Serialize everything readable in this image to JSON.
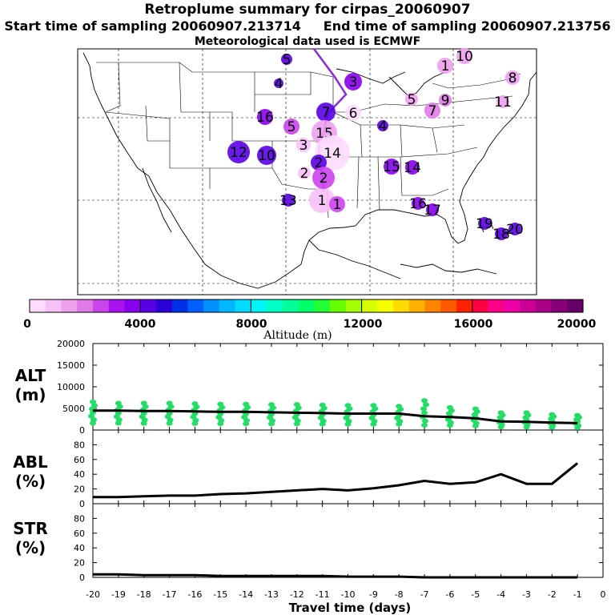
{
  "header": {
    "title": "Retroplume summary for cirpas_20060907",
    "start_label": "Start time of sampling 20060907.213714",
    "end_label": "End time of sampling 20060907.213756",
    "met_label": "Meteorological data used is ECMWF"
  },
  "colors": {
    "line": "#000000",
    "scatter": "#22dd66",
    "trajectory": "#8a2be2",
    "colorbar": [
      "#ffdcff",
      "#f7c0f7",
      "#eea0ee",
      "#e07ae6",
      "#cc44ee",
      "#aa11ee",
      "#8800ee",
      "#5a00e6",
      "#2a00d8",
      "#0030e8",
      "#0060ff",
      "#0090ff",
      "#00b8ff",
      "#00dcff",
      "#00f6f6",
      "#00ffc4",
      "#00ff9a",
      "#00ff66",
      "#22ff33",
      "#66ff00",
      "#a4ff00",
      "#d6ff00",
      "#f6ff00",
      "#ffdc00",
      "#ffb000",
      "#ff8400",
      "#ff5a00",
      "#ff2200",
      "#ff0044",
      "#ff0088",
      "#ee00a6",
      "#cc0099",
      "#aa0088",
      "#880077",
      "#660066"
    ]
  },
  "chart_data": [
    {
      "type": "map",
      "title": "Retroplume summary for cirpas_20060907",
      "colorbar": {
        "label": "Altitude (m)",
        "ticks": [
          "0",
          "4000",
          "8000",
          "12000",
          "16000",
          "20000"
        ],
        "range": [
          0,
          20000
        ]
      },
      "markers": [
        {
          "label": "5",
          "day": 5,
          "alt": 4500
        },
        {
          "label": "10",
          "day": 10,
          "alt": 1200
        },
        {
          "label": "4",
          "day": 4,
          "alt": 4000
        },
        {
          "label": "8",
          "day": 8,
          "alt": 1500
        },
        {
          "label": "1",
          "day": 1,
          "alt": 1500
        },
        {
          "label": "11",
          "day": 11,
          "alt": 1300
        },
        {
          "label": "7",
          "day": 7,
          "alt": 4000
        },
        {
          "label": "6",
          "day": 6,
          "alt": 500
        },
        {
          "label": "5",
          "day": 5,
          "alt": 1200
        },
        {
          "label": "9",
          "day": 9,
          "alt": 2000
        },
        {
          "label": "7",
          "day": 7,
          "alt": 1800
        },
        {
          "label": "3",
          "day": 3,
          "alt": 3500
        },
        {
          "label": "4",
          "day": 4,
          "alt": 4000
        },
        {
          "label": "16",
          "day": 16,
          "alt": 3500
        },
        {
          "label": "5",
          "day": 5,
          "alt": 2500
        },
        {
          "label": "15",
          "day": 15,
          "alt": 1500
        },
        {
          "label": "3",
          "day": 3,
          "alt": 800
        },
        {
          "label": "14",
          "day": 14,
          "alt": 400
        },
        {
          "label": "12",
          "day": 12,
          "alt": 4500
        },
        {
          "label": "10",
          "day": 10,
          "alt": 4000
        },
        {
          "label": "2",
          "day": 2,
          "alt": 600
        },
        {
          "label": "2",
          "day": 2,
          "alt": 4000
        },
        {
          "label": "15",
          "day": 15,
          "alt": 3500
        },
        {
          "label": "14",
          "day": 14,
          "alt": 3500
        },
        {
          "label": "13",
          "day": 13,
          "alt": 4500
        },
        {
          "label": "1",
          "day": 1,
          "alt": 600
        },
        {
          "label": "1",
          "day": 1,
          "alt": 2500
        },
        {
          "label": "16",
          "day": 16,
          "alt": 3500
        },
        {
          "label": "17",
          "day": 17,
          "alt": 3500
        },
        {
          "label": "19",
          "day": 19,
          "alt": 4500
        },
        {
          "label": "18",
          "day": 18,
          "alt": 4500
        },
        {
          "label": "20",
          "day": 20,
          "alt": 4500
        },
        {
          "label": "2",
          "day": 2,
          "alt": 2500
        }
      ]
    },
    {
      "type": "line",
      "name": "ALT",
      "ylabel": "ALT (m)",
      "x": [
        -20,
        -19,
        -18,
        -17,
        -16,
        -15,
        -14,
        -13,
        -12,
        -11,
        -10,
        -9,
        -8,
        -7,
        -6,
        -5,
        -4,
        -3,
        -2,
        -1
      ],
      "values": [
        4500,
        4500,
        4400,
        4400,
        4300,
        4200,
        4200,
        4100,
        4000,
        3900,
        3800,
        3800,
        3800,
        3200,
        3000,
        2700,
        2000,
        1900,
        1700,
        1600
      ],
      "scatter_tops": [
        6500,
        6200,
        6200,
        6200,
        6100,
        6000,
        6000,
        5900,
        5900,
        5800,
        5700,
        5700,
        5500,
        6800,
        5200,
        4900,
        4000,
        4000,
        3600,
        3400
      ],
      "yticks": [
        "0",
        "5000",
        "10000",
        "15000",
        "20000"
      ],
      "ylim": [
        0,
        20000
      ]
    },
    {
      "type": "line",
      "name": "ABL",
      "ylabel": "ABL (%)",
      "x": [
        -20,
        -19,
        -18,
        -17,
        -16,
        -15,
        -14,
        -13,
        -12,
        -11,
        -10,
        -9,
        -8,
        -7,
        -6,
        -5,
        -4,
        -3,
        -2,
        -1
      ],
      "values": [
        9,
        9,
        10,
        11,
        11,
        13,
        14,
        16,
        18,
        20,
        18,
        21,
        25,
        31,
        27,
        29,
        40,
        27,
        27,
        55
      ],
      "yticks": [
        "0",
        "20",
        "40",
        "60",
        "80"
      ],
      "ylim": [
        0,
        100
      ]
    },
    {
      "type": "line",
      "name": "STR",
      "ylabel": "STR (%)",
      "x": [
        -20,
        -19,
        -18,
        -17,
        -16,
        -15,
        -14,
        -13,
        -12,
        -11,
        -10,
        -9,
        -8,
        -7,
        -6,
        -5,
        -4,
        -3,
        -2,
        -1
      ],
      "values": [
        4,
        4,
        3,
        3,
        3,
        2,
        2,
        2,
        2,
        2,
        1,
        1,
        1,
        0,
        0,
        0,
        0,
        0,
        0,
        0
      ],
      "yticks": [
        "0",
        "20",
        "40",
        "60",
        "80"
      ],
      "ylim": [
        0,
        100
      ],
      "xlabel": "Travel time (days)",
      "xticks": [
        "-20",
        "-19",
        "-18",
        "-17",
        "-16",
        "-15",
        "-14",
        "-13",
        "-12",
        "-11",
        "-10",
        "-9",
        "-8",
        "-7",
        "-6",
        "-5",
        "-4",
        "-3",
        "-2",
        "-1",
        "0"
      ]
    }
  ],
  "panels": {
    "alt_label": {
      "line1": "ALT",
      "line2": "(m)"
    },
    "abl_label": {
      "line1": "ABL",
      "line2": "(%)"
    },
    "str_label": {
      "line1": "STR",
      "line2": "(%)"
    }
  }
}
